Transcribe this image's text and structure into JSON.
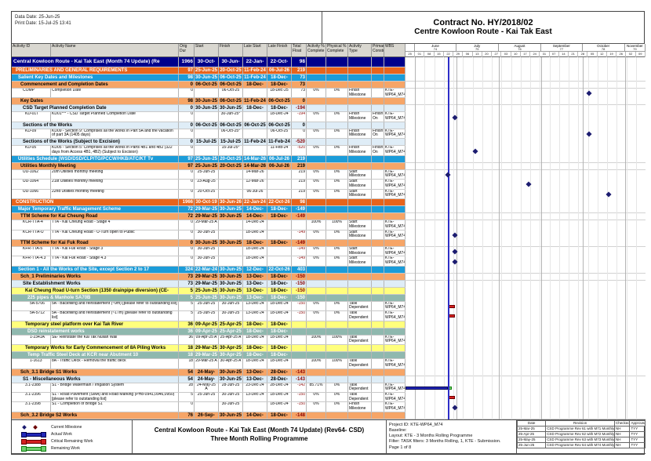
{
  "header": {
    "data_date": "Data Date: 25-Jun-25",
    "print_date": "Print Date: 15-Jul-25 13:41",
    "title_line1": "Contract No. HY/2018/02",
    "title_line2": "Centre Kowloon Route - Kai Tak East"
  },
  "columns": [
    "Activity ID",
    "Activity Name",
    "Orig Dur",
    "Start",
    "Finish",
    "Late Start",
    "Late Finish",
    "Total Float",
    "Activity % Complete",
    "Physical % Complete",
    "Activity Type",
    "Primary Constraint",
    "WBS"
  ],
  "colors": {
    "project_row": "#00008B",
    "wbs1_row": "#E8641B",
    "wbs2_row": "#1B9CD9",
    "wbs3_row": "#F6A567",
    "wbs4_row": "#DFEDF7",
    "wbs5_row": "#FFFF7D",
    "wbs6_row": "#8FB8AE",
    "actual_bar": "#2228B8",
    "critical_bar": "#D42020",
    "remaining_bar": "#6fd06f",
    "milestone": "#1C1C70",
    "data_date_line": "#2E2EC8",
    "negative_float_text": "#8B0000"
  },
  "timeline": {
    "months": [
      {
        "label": "",
        "num": "",
        "w": 4
      },
      {
        "label": "June",
        "num": "74",
        "w": 17.14
      },
      {
        "label": "July",
        "num": "75",
        "w": 17.72
      },
      {
        "label": "August",
        "num": "76",
        "w": 17.72
      },
      {
        "label": "September",
        "num": "77",
        "w": 17.14
      },
      {
        "label": "October",
        "num": "78",
        "w": 17.71
      },
      {
        "label": "November",
        "num": "79",
        "w": 8.57
      }
    ],
    "weeks": [
      "25",
      "01",
      "08",
      "15",
      "22",
      "29",
      "06",
      "13",
      "20",
      "27",
      "03",
      "10",
      "17",
      "24",
      "31",
      "07",
      "14",
      "21",
      "28",
      "05",
      "12",
      "19",
      "26",
      "02",
      "09"
    ],
    "data_date_pct": 17.71,
    "month_boundaries_pct": [
      4,
      21.14,
      38.86,
      56.57,
      73.71,
      91.43
    ]
  },
  "rows": [
    {
      "type": "project",
      "ind": 0,
      "name": "Central Kowloon Route - Kai Tak East (Month 74 Update) (Re",
      "dur": "1966",
      "start": "30-Oct-19 A",
      "finish": "30-Jun-26",
      "lstart": "22-Jan-24",
      "lfinish": "22-Oct-26",
      "float": "98",
      "bars": []
    },
    {
      "type": "wbs1",
      "ind": 1,
      "name": "PRELIMINARIES AND GENERAL REQUIREMENTS",
      "dur": "97",
      "start": "25-Jun-25",
      "finish": "20-Oct-25",
      "lstart": "11-Feb-24",
      "lfinish": "06-Jul-26",
      "float": "219",
      "bars": []
    },
    {
      "type": "wbs2",
      "ind": 2,
      "name": "Salient Key Dates and Milestones",
      "dur": "98",
      "start": "30-Jun-25",
      "finish": "06-Oct-25",
      "lstart": "11-Feb-24",
      "lfinish": "18-Dec-25",
      "float": "73",
      "bars": []
    },
    {
      "type": "wbs3",
      "ind": 3,
      "name": "Commencement and Completion Dates",
      "dur": "0",
      "start": "06-Oct-25",
      "finish": "06-Oct-25",
      "lstart": "18-Dec-25",
      "lfinish": "18-Dec-25",
      "float": "73",
      "bars": []
    },
    {
      "type": "act",
      "ind": 4,
      "id": "COMP",
      "name": "Completion Date",
      "dur": "0",
      "start": "",
      "finish": "06-Oct-25",
      "lstart": "",
      "lfinish": "18-Dec-25",
      "float": "73",
      "apct": "0%",
      "ppct": "0%",
      "atype": "Finish Milestone",
      "constr": "",
      "wbs": "KTE-WP64_M74.P",
      "bars": [
        {
          "t": "ms",
          "at": 76.57
        }
      ]
    },
    {
      "type": "wbs3",
      "ind": 3,
      "name": "Key Dates",
      "dur": "98",
      "start": "30-Jun-25",
      "finish": "06-Oct-25",
      "lstart": "11-Feb-24",
      "lfinish": "06-Oct-25",
      "float": "0",
      "bars": []
    },
    {
      "type": "wbs4",
      "ind": 4,
      "name": "CSD Target Planned Completion Date",
      "dur": "0",
      "start": "30-Jun-25",
      "finish": "30-Jun-25",
      "lstart": "18-Dec-24",
      "lfinish": "18-Dec-24",
      "float": "-194",
      "bars": []
    },
    {
      "type": "act",
      "ind": 5,
      "id": "KD-01T",
      "name": "KD01*** - CSD Target Planned Completion Date",
      "dur": "0",
      "start": "",
      "finish": "30-Jun-25*",
      "lstart": "",
      "lfinish": "18-Dec-24",
      "float": "-194",
      "apct": "0%",
      "ppct": "0%",
      "atype": "Finish Milestone",
      "constr": "Finish On",
      "wbs": "KTE-WP64_M74.P",
      "bars": [
        {
          "t": "ms",
          "at": 20.57
        }
      ]
    },
    {
      "type": "wbs4",
      "ind": 4,
      "name": "Sections of the Works",
      "dur": "0",
      "start": "06-Oct-25",
      "finish": "06-Oct-25",
      "lstart": "06-Oct-25",
      "lfinish": "06-Oct-25",
      "float": "0",
      "bars": []
    },
    {
      "type": "act",
      "ind": 5,
      "id": "KD-09",
      "name": "KD09 - Section 9: Comprises all the works in Part 5A and the vacation of part 3A (1405 days)",
      "dur": "0",
      "start": "",
      "finish": "06-Oct-25*",
      "lstart": "",
      "lfinish": "06-Oct-25",
      "float": "0",
      "apct": "0%",
      "ppct": "0%",
      "atype": "Finish Milestone",
      "constr": "Finish On",
      "wbs": "KTE-WP64_M74.P",
      "bars": [
        {
          "t": "ms",
          "at": 76.57
        }
      ]
    },
    {
      "type": "wbs4",
      "ind": 4,
      "name": "Sections of the Works (Subject to Excision)",
      "dur": "0",
      "start": "15-Jul-25",
      "finish": "15-Jul-25",
      "lstart": "11-Feb-24",
      "lfinish": "11-Feb-24",
      "float": "-520",
      "bars": []
    },
    {
      "type": "act",
      "ind": 5,
      "id": "KD-05",
      "name": "KD05 - Section 5: Comprises all the works in Parts 4B1 and 4B2 (322 days from Access 4B1, 4B2) (Subject to Excision)",
      "dur": "0",
      "start": "",
      "finish": "15-Jul-25*",
      "lstart": "",
      "lfinish": "11-Feb-24",
      "float": "-520",
      "apct": "0%",
      "ppct": "0%",
      "atype": "Finish Milestone",
      "constr": "Finish On",
      "wbs": "KTE-WP64_M74.P",
      "bars": [
        {
          "t": "ms",
          "at": 29.14
        }
      ]
    },
    {
      "type": "wbs2",
      "ind": 2,
      "name": "Utilities Schedule (WSD/DSD/CLP/TG/PCCW/HKB/ATC/KT Tv",
      "dur": "97",
      "start": "25-Jun-25",
      "finish": "20-Oct-25",
      "lstart": "14-Mar-26",
      "lfinish": "06-Jul-26",
      "float": "219",
      "bars": []
    },
    {
      "type": "wbs3",
      "ind": 3,
      "name": "Utilities Monthly Meeting",
      "dur": "97",
      "start": "25-Jun-25",
      "finish": "20-Oct-25",
      "lstart": "14-Mar-26",
      "lfinish": "06-Jul-26",
      "float": "219",
      "bars": []
    },
    {
      "type": "act",
      "ind": 4,
      "id": "UU-1062",
      "name": "20th Utilities monthly meeting",
      "dur": "0",
      "start": "25-Jun-25",
      "finish": "",
      "lstart": "14-Mar-26",
      "lfinish": "",
      "float": "219",
      "apct": "0%",
      "ppct": "0%",
      "atype": "Start Milestone",
      "constr": "",
      "wbs": "KTE-WP64_M74.P",
      "bars": [
        {
          "t": "ms",
          "at": 17.71
        }
      ]
    },
    {
      "type": "act",
      "ind": 4,
      "id": "UU-1064",
      "name": "21st Utilities monthly meeting",
      "dur": "0",
      "start": "23-Aug-25",
      "finish": "",
      "lstart": "12-Mar-26",
      "lfinish": "",
      "float": "219",
      "apct": "0%",
      "ppct": "0%",
      "atype": "Start Milestone",
      "constr": "",
      "wbs": "KTE-WP64_M74.P",
      "bars": [
        {
          "t": "ms",
          "at": 51.43
        }
      ]
    },
    {
      "type": "act",
      "ind": 4,
      "id": "UU-1066",
      "name": "22nd Utilities monthly meeting",
      "dur": "0",
      "start": "20-Oct-25",
      "finish": "",
      "lstart": "06-Jul-26",
      "lfinish": "",
      "float": "219",
      "apct": "0%",
      "ppct": "0%",
      "atype": "Start Milestone",
      "constr": "",
      "wbs": "KTE-WP64_M74.P",
      "bars": [
        {
          "t": "ms",
          "at": 84.57
        }
      ]
    },
    {
      "type": "wbs1",
      "ind": 1,
      "name": "CONSTRUCTION",
      "dur": "1966",
      "start": "30-Oct-19 A",
      "finish": "30-Jun-26",
      "lstart": "22-Jan-24",
      "lfinish": "22-Oct-26",
      "float": "98",
      "bars": []
    },
    {
      "type": "wbs2",
      "ind": 2,
      "name": "Major Temporary Traffic Management Scheme",
      "dur": "72",
      "start": "29-Mar-25 A",
      "finish": "30-Jun-25",
      "lstart": "14-Dec-24",
      "lfinish": "18-Dec-24",
      "float": "-149",
      "bars": []
    },
    {
      "type": "wbs3",
      "ind": 3,
      "name": "TTM Scheme for Kai Cheung Road",
      "dur": "72",
      "start": "29-Mar-25 A",
      "finish": "30-Jun-25",
      "lstart": "14-Dec-24",
      "lfinish": "18-Dec-24",
      "float": "-149",
      "bars": []
    },
    {
      "type": "act",
      "ind": 4,
      "id": "KCR-TTA-4",
      "name": "TTA - Kai Cheung Road - Stage 4",
      "dur": "0",
      "start": "29-Mar-25 A",
      "finish": "",
      "lstart": "14-Dec-24",
      "lfinish": "",
      "float": "",
      "apct": "100%",
      "ppct": "100%",
      "atype": "Start Milestone",
      "constr": "",
      "wbs": "KTE-WP64_M74.C",
      "bars": []
    },
    {
      "type": "act",
      "ind": 4,
      "id": "KCR-TTA-U",
      "name": "TTA - Kai Cheung Road - U-Turn open to Public",
      "dur": "0",
      "start": "30-Jun-25",
      "finish": "",
      "lstart": "18-Dec-24",
      "lfinish": "",
      "float": "-149",
      "apct": "0%",
      "ppct": "0%",
      "atype": "Start Milestone",
      "constr": "",
      "wbs": "KTE-WP64_M74.C",
      "bars": [
        {
          "t": "ms",
          "at": 20.57
        }
      ]
    },
    {
      "type": "wbs3",
      "ind": 3,
      "name": "TTM Scheme for Kai Fuk Road",
      "dur": "0",
      "start": "30-Jun-25",
      "finish": "30-Jun-25",
      "lstart": "18-Dec-24",
      "lfinish": "18-Dec-24",
      "float": "-149",
      "bars": []
    },
    {
      "type": "act",
      "ind": 4,
      "id": "KFR-TTA-5",
      "name": "TTA - Kai Fuk Road - Stage 3",
      "dur": "0",
      "start": "30-Jun-25",
      "finish": "",
      "lstart": "18-Dec-24",
      "lfinish": "",
      "float": "-149",
      "apct": "0%",
      "ppct": "0%",
      "atype": "Start Milestone",
      "constr": "",
      "wbs": "KTE-WP64_M74.C",
      "bars": [
        {
          "t": "ms",
          "at": 20.57
        }
      ]
    },
    {
      "type": "act",
      "ind": 4,
      "id": "KFR-TTA-4.3",
      "name": "TTA - Kai Fuk Road - Stage 4.3",
      "dur": "0",
      "start": "30-Jun-25",
      "finish": "",
      "lstart": "18-Dec-24",
      "lfinish": "",
      "float": "-149",
      "apct": "0%",
      "ppct": "0%",
      "atype": "Start Milestone",
      "constr": "",
      "wbs": "KTE-WP64_M74.C",
      "bars": [
        {
          "t": "ms",
          "at": 20.57
        }
      ]
    },
    {
      "type": "wbs2",
      "ind": 2,
      "name": "Section 1 - All the Works of the Site, except Section 2 to 17",
      "dur": "324",
      "start": "22-Mar-24 A",
      "finish": "30-Jun-25",
      "lstart": "12-Dec-24",
      "lfinish": "22-Oct-26",
      "float": "403",
      "bars": []
    },
    {
      "type": "wbs3",
      "ind": 3,
      "name": "Sch_1 Preliminaries Works",
      "dur": "73",
      "start": "29-Mar-25 A",
      "finish": "30-Jun-25",
      "lstart": "13-Dec-24",
      "lfinish": "18-Dec-24",
      "float": "-150",
      "bars": []
    },
    {
      "type": "wbs4",
      "ind": 4,
      "name": "Site Establishment Works",
      "dur": "73",
      "start": "29-Mar-25 A",
      "finish": "30-Jun-25",
      "lstart": "13-Dec-24",
      "lfinish": "18-Dec-24",
      "float": "-150",
      "bars": []
    },
    {
      "type": "wbs5",
      "ind": 5,
      "name": "Kai Cheung Road U-turn Section (1350 drainpipe diversion) (CE-0024)",
      "dur": "5",
      "start": "25-Jun-25",
      "finish": "30-Jun-25",
      "lstart": "13-Dec-24",
      "lfinish": "18-Dec-24",
      "float": "-150",
      "bars": []
    },
    {
      "type": "wbs6",
      "ind": 6,
      "name": "225 pipes & Manhole SA70B",
      "dur": "5",
      "start": "25-Jun-25",
      "finish": "30-Jun-25",
      "lstart": "13-Dec-24",
      "lfinish": "18-Dec-24",
      "float": "-150",
      "bars": []
    },
    {
      "type": "act",
      "ind": 7,
      "id": "5A-5706",
      "name": "5A - Backfilling and reinstatement (~9m) [please refer to outstanding list]",
      "dur": "5",
      "start": "25-Jun-25",
      "finish": "30-Jun-25",
      "lstart": "13-Dec-24",
      "lfinish": "18-Dec-24",
      "float": "-150",
      "apct": "0%",
      "ppct": "0%",
      "atype": "Task Dependent",
      "constr": "",
      "wbs": "KTE-WP64_M74.C",
      "bars": [
        {
          "t": "crit",
          "a": 17.71,
          "b": 20.57
        }
      ]
    },
    {
      "type": "act",
      "ind": 7,
      "id": "5A-5712",
      "name": "5A - Backfilling and reinstatement (~17m) [please refer to outstanding list]",
      "dur": "5",
      "start": "25-Jun-25",
      "finish": "30-Jun-25",
      "lstart": "13-Dec-24",
      "lfinish": "18-Dec-24",
      "float": "-150",
      "apct": "0%",
      "ppct": "0%",
      "atype": "Task Dependent",
      "constr": "",
      "wbs": "KTE-WP64_M74.C",
      "bars": [
        {
          "t": "crit",
          "a": 17.71,
          "b": 20.57
        }
      ]
    },
    {
      "type": "wbs5",
      "ind": 5,
      "name": "Temporary steel platform over Kai Tak River",
      "dur": "36",
      "start": "09-Apr-25 A",
      "finish": "25-Apr-25 A",
      "lstart": "18-Dec-24",
      "lfinish": "18-Dec-24",
      "float": "",
      "bars": []
    },
    {
      "type": "wbs6",
      "ind": 6,
      "name": "DSD reinstatement works",
      "dur": "36",
      "start": "09-Apr-25 A",
      "finish": "25-Apr-25 A",
      "lstart": "18-Dec-24",
      "lfinish": "18-Dec-24",
      "float": "",
      "bars": []
    },
    {
      "type": "act",
      "ind": 7,
      "id": "1-2341A",
      "name": "SE- Reinstate the Kai Tak Nullah Wall",
      "dur": "36",
      "start": "09-Apr-25 A",
      "finish": "25-Apr-25 A",
      "lstart": "18-Dec-24",
      "lfinish": "18-Dec-24",
      "float": "",
      "apct": "100%",
      "ppct": "100%",
      "atype": "Task Dependent",
      "constr": "",
      "wbs": "KTE-WP64_M74.C",
      "bars": []
    },
    {
      "type": "wbs5",
      "ind": 5,
      "name": "Temporary Works for Early Commencement of 8A Piling Works",
      "dur": "18",
      "start": "29-Mar-25 A",
      "finish": "30-Apr-25 A",
      "lstart": "18-Dec-24",
      "lfinish": "18-Dec-24",
      "float": "",
      "bars": []
    },
    {
      "type": "wbs6",
      "ind": 6,
      "name": "Temp Traffic Steel Deck at KCR near Abutment 10",
      "dur": "18",
      "start": "29-Mar-25 A",
      "finish": "30-Apr-25 A",
      "lstart": "18-Dec-24",
      "lfinish": "18-Dec-24",
      "float": "",
      "bars": []
    },
    {
      "type": "act",
      "ind": 7,
      "id": "1-1613",
      "name": "8A - Traffic Deck - Removal the traffic deck",
      "dur": "18",
      "start": "29-Mar-25 A",
      "finish": "30-Apr-25 A",
      "lstart": "18-Dec-24",
      "lfinish": "18-Dec-24",
      "float": "",
      "apct": "100%",
      "ppct": "100%",
      "atype": "Task Dependent",
      "constr": "",
      "wbs": "KTE-WP64_M74.C",
      "bars": []
    },
    {
      "type": "wbs3",
      "ind": 3,
      "name": "Sch_3.1 Bridge S1 Works",
      "dur": "54",
      "start": "24-May-25 A",
      "finish": "30-Jun-25",
      "lstart": "13-Dec-24",
      "lfinish": "28-Dec-24",
      "float": "-143",
      "bars": []
    },
    {
      "type": "wbs4",
      "ind": 4,
      "name": "S1 - Miscellaneous Works",
      "dur": "54",
      "start": "24-May-25 A",
      "finish": "30-Jun-25",
      "lstart": "13-Dec-24",
      "lfinish": "28-Dec-24",
      "float": "-143",
      "bars": []
    },
    {
      "type": "act",
      "ind": 5,
      "id": "3.1-2388",
      "name": "S1 - Bridge Watermain / Irrigation System",
      "dur": "28",
      "start": "24-May-25 A",
      "finish": "28-Jun-25",
      "lstart": "23-Dec-24",
      "lfinish": "28-Dec-24",
      "float": "-142",
      "apct": "85.71%",
      "ppct": "0%",
      "atype": "Task Dependent",
      "constr": "",
      "wbs": "KTE-WP64_M74.C",
      "bars": [
        {
          "t": "act",
          "a": 0,
          "b": 17.71
        },
        {
          "t": "rem",
          "a": 17.71,
          "b": 19.43
        }
      ]
    },
    {
      "type": "act",
      "ind": 5,
      "id": "3.1-2396",
      "name": "S1 - Road Pavement (SMA) and Road Marking (PH8-0941,0946,0950) [please refer to outstanding list]",
      "dur": "5",
      "start": "25-Jun-25",
      "finish": "30-Jun-25",
      "lstart": "13-Dec-24",
      "lfinish": "18-Dec-24",
      "float": "-150",
      "apct": "0%",
      "ppct": "0%",
      "atype": "Task Dependent",
      "constr": "",
      "wbs": "KTE-WP64_M74.C",
      "bars": [
        {
          "t": "crit",
          "a": 17.71,
          "b": 20.57
        }
      ]
    },
    {
      "type": "act",
      "ind": 5,
      "id": "3.1-2398",
      "name": "S1 - Completion of Bridge S1",
      "dur": "0",
      "start": "",
      "finish": "30-Jun-25",
      "lstart": "",
      "lfinish": "18-Dec-24",
      "float": "-150",
      "apct": "0%",
      "ppct": "0%",
      "atype": "Finish Milestone",
      "constr": "",
      "wbs": "KTE-WP64_M74.C",
      "bars": [
        {
          "t": "ms",
          "at": 20.57
        }
      ]
    },
    {
      "type": "wbs3",
      "ind": 3,
      "name": "Sch_3.2 Bridge S2 Works",
      "dur": "76",
      "start": "26-Sep-24 A",
      "finish": "30-Jun-25",
      "lstart": "14-Dec-24",
      "lfinish": "18-Dec-24",
      "float": "-148",
      "bars": []
    }
  ],
  "footer": {
    "legend": [
      {
        "icon": "milestone-diamond",
        "label": "Current Milestone"
      },
      {
        "icon": "actual-work-bar",
        "label": "Actual Work"
      },
      {
        "icon": "critical-remaining-bar",
        "label": "Critical Remaining Work"
      },
      {
        "icon": "remaining-work-bar",
        "label": "Remaining Work"
      }
    ],
    "title_line1": "Central Kowloon Route - Kai Tak East (Month 74 Update) (Rev64- CSD)",
    "title_line2": "Three Month Rolling Programme",
    "info": {
      "project_id": "Project ID: KTE-WP64_M74",
      "baseline": "Baseline:",
      "layout": "Layout: KTE - 3 Months Rolling Programme",
      "filter": "Filter: TASK filters: 3 Months Rolling, 1, KTE - Submission.",
      "page": "Page 1 of 8"
    },
    "revisions": {
      "headers": [
        "Date",
        "Revision",
        "Checked",
        "Approved"
      ],
      "rows": [
        [
          "25-Mar-25",
          "CSD Programme Rev 61 with M71 Monthly U...",
          "NH",
          "TYY"
        ],
        [
          "25-Apr-25",
          "CSD Programme Rev 62 with M72 Monthly U...",
          "NH",
          "TYY"
        ],
        [
          "25-May-25",
          "CSD Programme Rev 63 with M73 Monthly Up...",
          "NH",
          "TYY"
        ],
        [
          "25-Jun-25",
          "CSD Programme Rev 64 with M74 Monthly Up...",
          "NH",
          "TYY"
        ]
      ]
    }
  }
}
